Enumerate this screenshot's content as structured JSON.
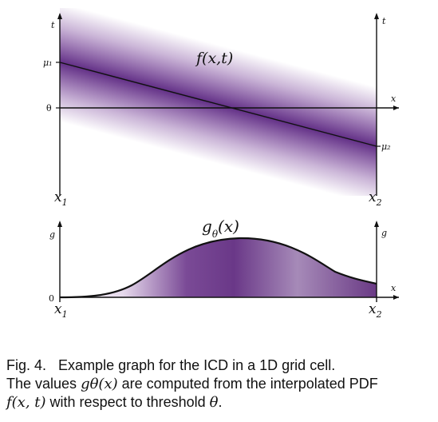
{
  "top_panel": {
    "function_label": "f(x,t)",
    "left_axis_label": "t",
    "right_axis_label": "t",
    "x_axis_label": "x",
    "mu1_label": "μ₁",
    "mu2_label": "μ₂",
    "theta_label": "θ",
    "x1_label": "x",
    "x1_sub": "1",
    "x2_label": "x",
    "x2_sub": "2",
    "band_color": "#6b2f8f"
  },
  "bottom_panel": {
    "function_label_main": "g",
    "function_label_sub": "θ",
    "function_label_arg": "(x)",
    "left_axis_label": "g",
    "right_axis_label": "g",
    "x_axis_label": "x",
    "zero_label": "0",
    "x1_label": "x",
    "x1_sub": "1",
    "x2_label": "x",
    "x2_sub": "2",
    "fill_color": "#6b3a8a"
  },
  "caption": {
    "fig_label": "Fig. 4.",
    "line1_text": "Example graph for the ICD in a 1D grid cell.",
    "line2_prefix": "The values ",
    "line2_math": "gθ(x)",
    "line2_suffix": " are computed from the interpolated PDF",
    "line3_math": "f(x, t)",
    "line3_mid": " with respect to threshold ",
    "line3_theta": "θ",
    "line3_end": "."
  }
}
